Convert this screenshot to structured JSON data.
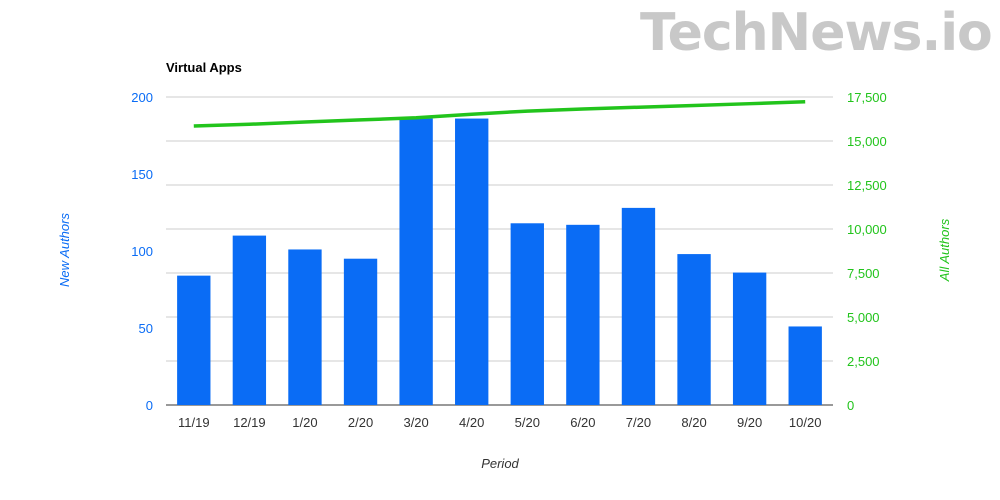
{
  "watermark": {
    "text": "TechNews.io",
    "color": "#c8c8c8"
  },
  "chart_data": {
    "type": "bar",
    "title": "Virtual Apps",
    "xlabel": "Period",
    "ylabel_left": "New Authors",
    "ylabel_right": "All Authors",
    "categories": [
      "11/19",
      "12/19",
      "1/20",
      "2/20",
      "3/20",
      "4/20",
      "5/20",
      "6/20",
      "7/20",
      "8/20",
      "9/20",
      "10/20"
    ],
    "series": [
      {
        "name": "New Authors",
        "type": "bar",
        "axis": "left",
        "color": "#0a6cf5",
        "values": [
          84,
          110,
          101,
          95,
          186,
          186,
          118,
          117,
          128,
          98,
          86,
          51
        ]
      },
      {
        "name": "All Authors",
        "type": "line",
        "axis": "right",
        "color": "#22c41c",
        "values": [
          15850,
          15950,
          16080,
          16200,
          16320,
          16520,
          16700,
          16820,
          16920,
          17020,
          17120,
          17230
        ]
      }
    ],
    "ylim_left": [
      0,
      200
    ],
    "yticks_left": [
      0,
      50,
      100,
      150,
      200
    ],
    "ytick_labels_left": [
      "0",
      "50",
      "100",
      "150",
      "200"
    ],
    "ylim_right": [
      0,
      17500
    ],
    "yticks_right": [
      0,
      2500,
      5000,
      7500,
      10000,
      12500,
      15000,
      17500
    ],
    "ytick_labels_right": [
      "0",
      "2,500",
      "5,000",
      "7,500",
      "10,000",
      "12,500",
      "15,000",
      "17,500"
    ],
    "grid": true,
    "left_axis_color": "#0a6cf5",
    "right_axis_color": "#22c41c"
  }
}
